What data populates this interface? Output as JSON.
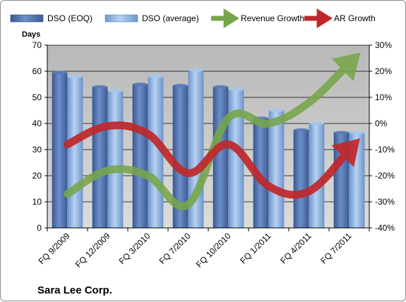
{
  "chart_data": {
    "type": "bar",
    "title": "",
    "company": "Sara Lee Corp.",
    "y_left_title": "Days",
    "y_left_lim": [
      0,
      70
    ],
    "y_left_ticks": [
      "0",
      "10",
      "20",
      "30",
      "40",
      "50",
      "60",
      "70"
    ],
    "y_right_lim": [
      -40,
      30
    ],
    "y_right_ticks": [
      "-40%",
      "-30%",
      "-20%",
      "-10%",
      "0%",
      "10%",
      "20%",
      "30%"
    ],
    "categories": [
      "FQ 9/2009",
      "FQ 12/2009",
      "FQ 3/2010",
      "FQ 7/2010",
      "FQ 10/2010",
      "FQ 1/2011",
      "FQ 4/2011",
      "FQ 7/2011"
    ],
    "series": [
      {
        "name": "DSO (EOQ)",
        "type": "bar",
        "axis": "left",
        "color": "#4f6fa8",
        "values": [
          59.5,
          54,
          55,
          54.5,
          54,
          42,
          37.5,
          36.5
        ]
      },
      {
        "name": "DSO (average)",
        "type": "bar",
        "axis": "left",
        "color": "#8fb3e0",
        "values": [
          58,
          52.5,
          58,
          60.5,
          53,
          45,
          40,
          36.5
        ]
      },
      {
        "name": "Revenue Growth",
        "type": "line",
        "axis": "right",
        "color": "#77a64a",
        "values": [
          -27,
          -18,
          -20,
          -31,
          2,
          0,
          8,
          23
        ]
      },
      {
        "name": "AR Growth",
        "type": "line",
        "axis": "right",
        "color": "#c0282b",
        "values": [
          -8,
          -1,
          -4,
          -19,
          -8,
          -24,
          -26,
          -10
        ]
      }
    ],
    "legend_position": "top",
    "grid": true
  }
}
